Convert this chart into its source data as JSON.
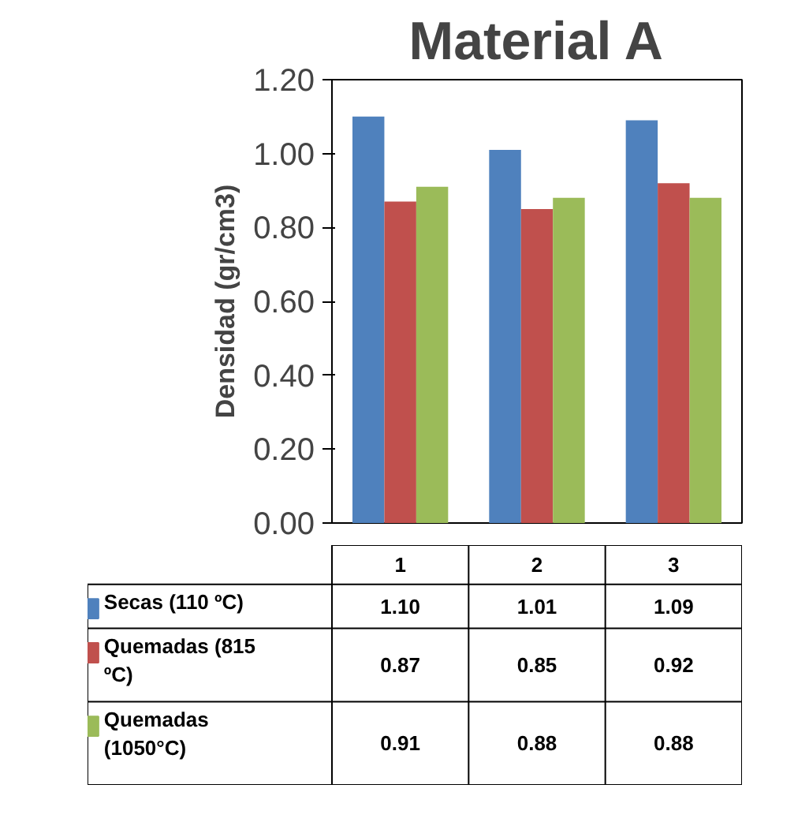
{
  "chart_data": {
    "type": "bar",
    "title": "Material A",
    "ylabel": "Densidad (gr/cm3)",
    "categories": [
      "1",
      "2",
      "3"
    ],
    "series": [
      {
        "name": "Secas (110 ºC)",
        "color": "#4f81bd",
        "values": [
          1.1,
          1.01,
          1.09
        ],
        "value_labels": [
          "1.10",
          "1.01",
          "1.09"
        ]
      },
      {
        "name": "Quemadas (815 ºC)",
        "color": "#c0504d",
        "values": [
          0.87,
          0.85,
          0.92
        ],
        "value_labels": [
          "0.87",
          "0.85",
          "0.92"
        ]
      },
      {
        "name": "Quemadas (1050°C)",
        "color": "#9bbb59",
        "values": [
          0.91,
          0.88,
          0.88
        ],
        "value_labels": [
          "0.91",
          "0.88",
          "0.88"
        ]
      }
    ],
    "ylim": [
      0,
      1.2
    ],
    "yticks": [
      {
        "value": 0,
        "label": "0.00"
      },
      {
        "value": 0.2,
        "label": "0.20"
      },
      {
        "value": 0.4,
        "label": "0.40"
      },
      {
        "value": 0.6,
        "label": "0.60"
      },
      {
        "value": 0.8,
        "label": "0.80"
      },
      {
        "value": 1.0,
        "label": "1.00"
      },
      {
        "value": 1.2,
        "label": "1.20"
      }
    ],
    "grid": false,
    "legend": "bottom"
  }
}
